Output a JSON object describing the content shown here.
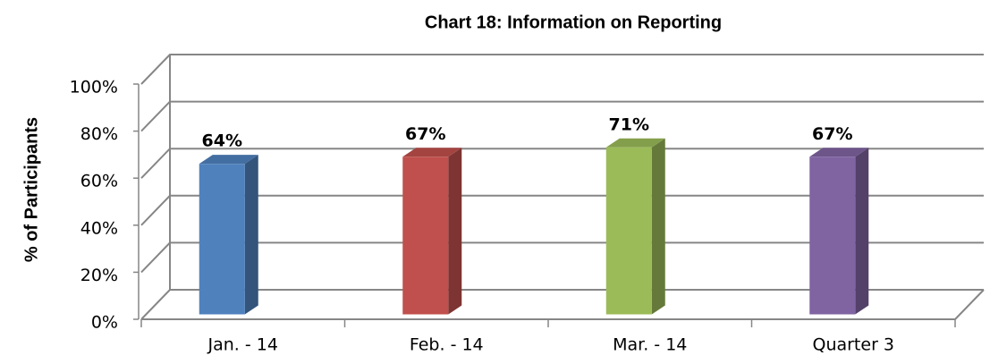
{
  "chart_data": {
    "type": "bar3d",
    "title": "Chart 18: Information on Reporting",
    "y_label": "% of Participants",
    "categories": [
      "Jan. - 14",
      "Feb. - 14",
      "Mar. - 14",
      "Quarter 3"
    ],
    "values": [
      64,
      67,
      71,
      67
    ],
    "value_labels": [
      "64%",
      "67%",
      "71%",
      "67%"
    ],
    "colors": [
      "#4f81bd",
      "#c0504d",
      "#9bbb59",
      "#8064a2"
    ],
    "ylim": [
      0,
      100
    ],
    "yticks": [
      {
        "value": 0,
        "label": "0%"
      },
      {
        "value": 20,
        "label": "20%"
      },
      {
        "value": 40,
        "label": "40%"
      },
      {
        "value": 60,
        "label": "60%"
      },
      {
        "value": 80,
        "label": "80%"
      },
      {
        "value": 100,
        "label": "100%"
      }
    ],
    "grid": true
  }
}
